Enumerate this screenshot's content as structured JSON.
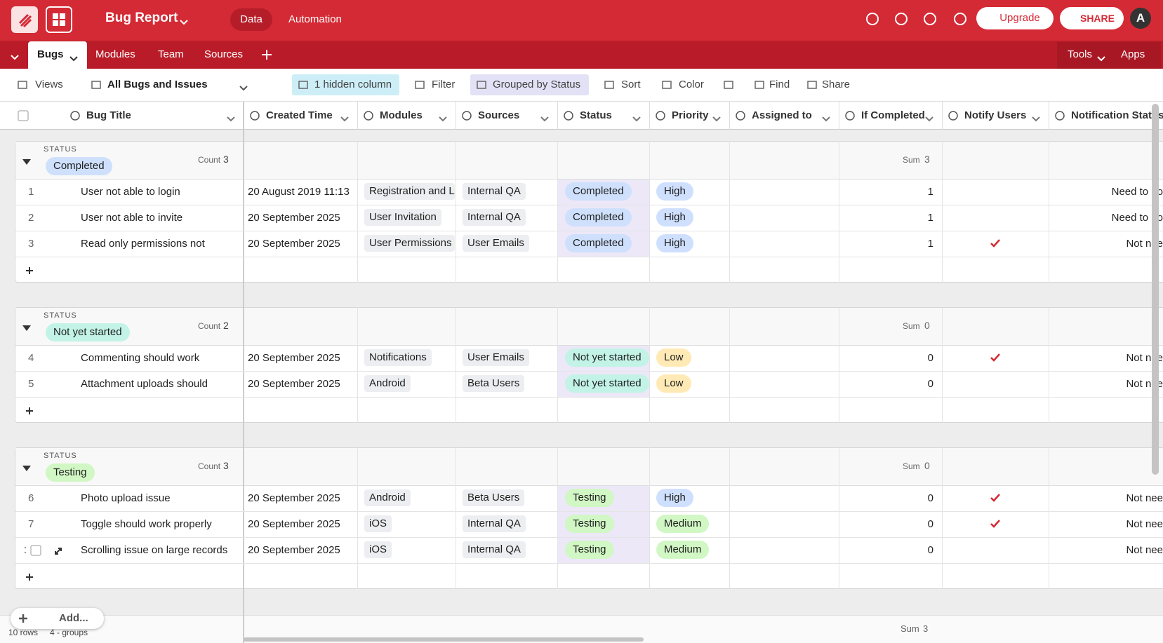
{
  "header": {
    "title": "Bug Report",
    "tabs": [
      "Data",
      "Automation"
    ],
    "upgrade": "Upgrade",
    "share": "SHARE",
    "avatar": "A"
  },
  "tables_bar": {
    "tables": [
      "Bugs",
      "Modules",
      "Team",
      "Sources"
    ],
    "right": [
      "Tools",
      "Apps"
    ]
  },
  "toolbar": {
    "views": "Views",
    "view_name": "All Bugs and Issues",
    "hidden": "1 hidden column",
    "filter": "Filter",
    "grouped": "Grouped by Status",
    "sort": "Sort",
    "color": "Color",
    "find": "Find",
    "share": "Share"
  },
  "columns": [
    "Bug Title",
    "Created Time",
    "Modules",
    "Sources",
    "Status",
    "Priority",
    "Assigned to",
    "If Completed",
    "Notify Users",
    "Notification Status"
  ],
  "groups": [
    {
      "label": "STATUS",
      "status": "Completed",
      "color": "#cfe0fc",
      "count_label": "Count",
      "count": 3,
      "sum_label": "Sum",
      "sum": 3,
      "rows": [
        {
          "id": 1,
          "title": "User not able to login",
          "created": "20 August 2019 11:13",
          "module": "Registration and L",
          "source": "Internal QA",
          "status": "Completed",
          "priority": "High",
          "priority_color": "#cfdffe",
          "if_completed": 1,
          "notify": false,
          "notification": "Need to no"
        },
        {
          "id": 2,
          "title": "User not able to invite",
          "created": "20 September 2025",
          "module": "User Invitation",
          "source": "Internal QA",
          "status": "Completed",
          "priority": "High",
          "priority_color": "#cfdffe",
          "if_completed": 1,
          "notify": false,
          "notification": "Need to no"
        },
        {
          "id": 3,
          "title": "Read only permissions not",
          "created": "20 September 2025",
          "module": "User Permissions",
          "source": "User Emails",
          "status": "Completed",
          "priority": "High",
          "priority_color": "#cfdffe",
          "if_completed": 1,
          "notify": true,
          "notification": "Not nee"
        }
      ]
    },
    {
      "label": "STATUS",
      "status": "Not yet started",
      "color": "#c2f3e6",
      "count_label": "Count",
      "count": 2,
      "sum_label": "Sum",
      "sum": 0,
      "rows": [
        {
          "id": 4,
          "title": "Commenting should work",
          "created": "20 September 2025",
          "module": "Notifications",
          "source": "User Emails",
          "status": "Not yet started",
          "priority": "Low",
          "priority_color": "#ffeab6",
          "if_completed": 0,
          "notify": true,
          "notification": "Not nee"
        },
        {
          "id": 5,
          "title": "Attachment uploads should",
          "created": "20 September 2025",
          "module": "Android",
          "source": "Beta Users",
          "status": "Not yet started",
          "priority": "Low",
          "priority_color": "#ffeab6",
          "if_completed": 0,
          "notify": false,
          "notification": "Not nee"
        }
      ]
    },
    {
      "label": "STATUS",
      "status": "Testing",
      "color": "#d1f7c4",
      "count_label": "Count",
      "count": 3,
      "sum_label": "Sum",
      "sum": 0,
      "rows": [
        {
          "id": 6,
          "title": "Photo upload issue",
          "created": "20 September 2025",
          "module": "Android",
          "source": "Beta Users",
          "status": "Testing",
          "priority": "High",
          "priority_color": "#cfdffe",
          "if_completed": 0,
          "notify": true,
          "notification": "Not nee"
        },
        {
          "id": 7,
          "title": "Toggle should work properly",
          "created": "20 September 2025",
          "module": "iOS",
          "source": "Internal QA",
          "status": "Testing",
          "priority": "Medium",
          "priority_color": "#d1f7c4",
          "if_completed": 0,
          "notify": true,
          "notification": "Not nee"
        },
        {
          "id": null,
          "title": "Scrolling issue on large records",
          "created": "20 September 2025",
          "module": "iOS",
          "source": "Internal QA",
          "status": "Testing",
          "priority": "Medium",
          "priority_color": "#d1f7c4",
          "if_completed": 0,
          "notify": false,
          "notification": "Not nee"
        }
      ]
    }
  ],
  "footer": {
    "rows": "10 rows",
    "groups": "4 - groups",
    "add": "Add...",
    "sum_label": "Sum",
    "sum": 3
  }
}
